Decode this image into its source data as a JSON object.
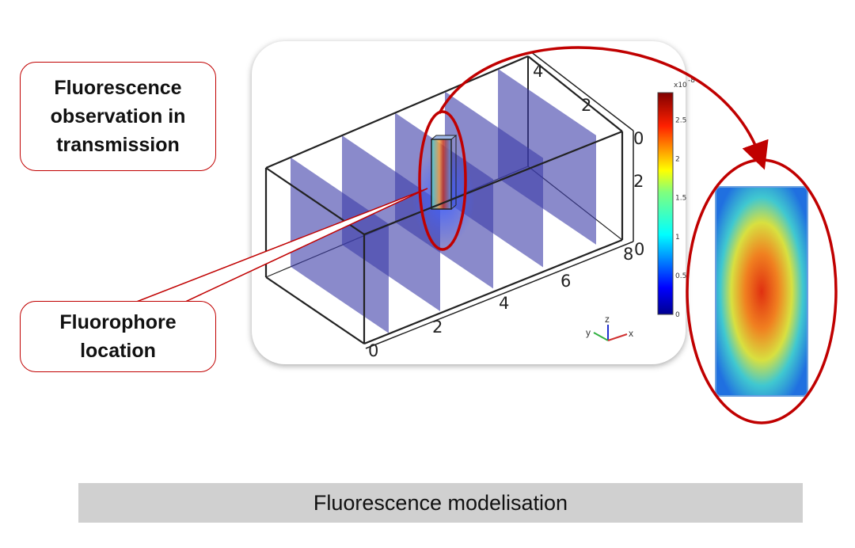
{
  "callouts": {
    "transmission": [
      "Fluorescence",
      "observation in",
      "transmission"
    ],
    "fluorophore": [
      "Fluorophore",
      "location"
    ]
  },
  "banner": {
    "title": "Fluorescence modelisation"
  },
  "colorbar": {
    "exponent_label": "x10",
    "exponent": "-8",
    "ticks": [
      "0",
      "0.5",
      "1",
      "1.5",
      "2",
      "2.5"
    ]
  },
  "axes": {
    "x_ticks": [
      "0",
      "2",
      "4",
      "6",
      "8"
    ],
    "y_ticks": [
      "0",
      "2",
      "4"
    ],
    "z_ticks": [
      "0",
      "2",
      "0"
    ],
    "triad": {
      "x": "x",
      "y": "y",
      "z": "z"
    }
  },
  "colors": {
    "accent": "#c00000",
    "plane": "#3c3ca8",
    "banner": "#d0d0d0"
  }
}
